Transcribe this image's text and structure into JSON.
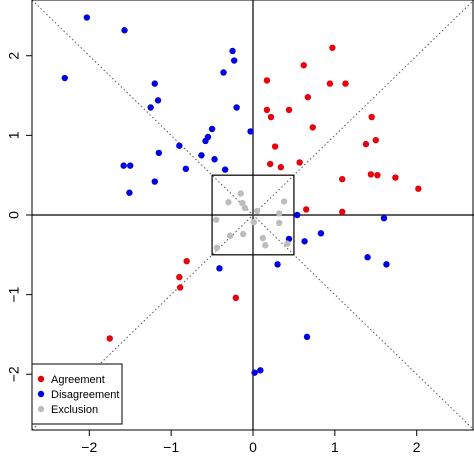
{
  "chart_data": {
    "type": "scatter",
    "title": "",
    "xlabel": "",
    "ylabel": "",
    "xlim": [
      -2.7,
      2.7
    ],
    "ylim": [
      -2.7,
      2.7
    ],
    "x_ticks": [
      {
        "value": -2,
        "label": "−2"
      },
      {
        "value": -1,
        "label": "−1"
      },
      {
        "value": 0,
        "label": "0"
      },
      {
        "value": 1,
        "label": "1"
      },
      {
        "value": 2,
        "label": "2"
      }
    ],
    "y_ticks": [
      {
        "value": -2,
        "label": "−2"
      },
      {
        "value": -1,
        "label": "−1"
      },
      {
        "value": 0,
        "label": "0"
      },
      {
        "value": 1,
        "label": "1"
      },
      {
        "value": 2,
        "label": "2"
      }
    ],
    "grid": false,
    "reference_lines": [
      "x=0",
      "y=0",
      "y=x dotted",
      "y=-x dotted"
    ],
    "exclusion_box": {
      "x": [
        -0.5,
        0.5
      ],
      "y": [
        -0.5,
        0.5
      ]
    },
    "legend_position": "bottom-left",
    "series": [
      {
        "name": "Agreement",
        "color": "#e8000b",
        "points": [
          [
            0.97,
            2.1
          ],
          [
            0.17,
            1.69
          ],
          [
            0.62,
            1.88
          ],
          [
            0.94,
            1.65
          ],
          [
            1.13,
            1.65
          ],
          [
            0.17,
            1.32
          ],
          [
            0.44,
            1.32
          ],
          [
            0.67,
            1.48
          ],
          [
            0.22,
            1.23
          ],
          [
            0.73,
            1.1
          ],
          [
            1.45,
            1.23
          ],
          [
            1.38,
            0.89
          ],
          [
            1.5,
            0.94
          ],
          [
            0.27,
            0.86
          ],
          [
            0.21,
            0.64
          ],
          [
            0.34,
            0.6
          ],
          [
            0.57,
            0.66
          ],
          [
            1.09,
            0.45
          ],
          [
            1.44,
            0.51
          ],
          [
            1.52,
            0.5
          ],
          [
            1.74,
            0.47
          ],
          [
            2.02,
            0.33
          ],
          [
            0.65,
            0.07
          ],
          [
            1.09,
            0.04
          ],
          [
            -0.81,
            -0.58
          ],
          [
            -0.9,
            -0.78
          ],
          [
            -0.89,
            -0.91
          ],
          [
            -0.21,
            -1.04
          ],
          [
            -1.75,
            -1.55
          ]
        ]
      },
      {
        "name": "Disagreement",
        "color": "#0000e0",
        "points": [
          [
            -2.03,
            2.48
          ],
          [
            -1.57,
            2.32
          ],
          [
            -0.25,
            2.06
          ],
          [
            -0.23,
            1.94
          ],
          [
            -0.36,
            1.79
          ],
          [
            -2.3,
            1.72
          ],
          [
            -1.2,
            1.65
          ],
          [
            -1.16,
            1.44
          ],
          [
            -1.25,
            1.35
          ],
          [
            -0.2,
            1.35
          ],
          [
            -0.5,
            1.08
          ],
          [
            -0.55,
            0.98
          ],
          [
            -0.9,
            0.87
          ],
          [
            -0.63,
            0.75
          ],
          [
            -0.58,
            0.93
          ],
          [
            -0.03,
            1.05
          ],
          [
            -1.58,
            0.62
          ],
          [
            -1.5,
            0.62
          ],
          [
            -1.15,
            0.78
          ],
          [
            -0.47,
            0.7
          ],
          [
            -0.82,
            0.58
          ],
          [
            -0.34,
            0.57
          ],
          [
            -1.2,
            0.42
          ],
          [
            -1.51,
            0.28
          ],
          [
            0.54,
            0.0
          ],
          [
            1.6,
            -0.04
          ],
          [
            0.44,
            -0.3
          ],
          [
            0.63,
            -0.33
          ],
          [
            0.83,
            -0.23
          ],
          [
            -0.41,
            -0.67
          ],
          [
            0.3,
            -0.62
          ],
          [
            1.4,
            -0.53
          ],
          [
            1.63,
            -0.62
          ],
          [
            0.66,
            -1.53
          ],
          [
            0.02,
            -1.98
          ],
          [
            0.09,
            -1.95
          ]
        ]
      },
      {
        "name": "Exclusion",
        "color": "#bdbdbd",
        "points": [
          [
            -0.15,
            0.27
          ],
          [
            -0.13,
            0.15
          ],
          [
            -0.3,
            0.16
          ],
          [
            -0.1,
            0.09
          ],
          [
            0.38,
            0.17
          ],
          [
            0.32,
            0.02
          ],
          [
            -0.45,
            -0.06
          ],
          [
            -0.28,
            -0.26
          ],
          [
            0.01,
            -0.09
          ],
          [
            0.32,
            -0.1
          ],
          [
            0.05,
            0.05
          ],
          [
            -0.12,
            -0.24
          ],
          [
            -0.44,
            -0.41
          ],
          [
            0.12,
            -0.29
          ],
          [
            0.15,
            -0.38
          ],
          [
            0.42,
            -0.36
          ]
        ]
      }
    ]
  }
}
